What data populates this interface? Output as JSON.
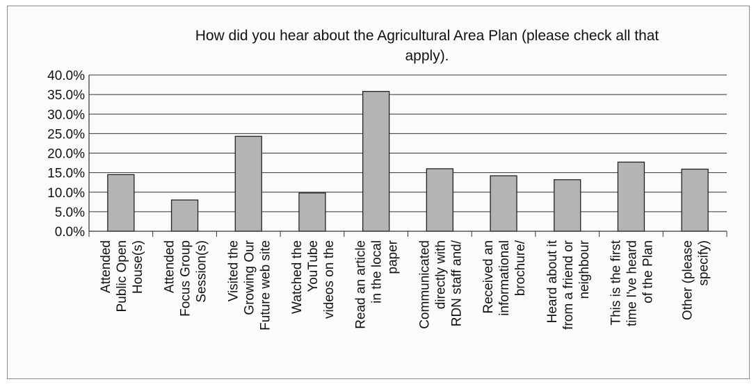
{
  "chart_data": {
    "type": "bar",
    "title_lines": [
      "How did you hear about the Agricultural Area Plan (please check all that",
      "apply)."
    ],
    "xlabel": "",
    "ylabel": "",
    "ylim": [
      0,
      40
    ],
    "y_tick_labels": [
      "40.0%",
      "35.0%",
      "30.0%",
      "25.0%",
      "20.0%",
      "15.0%",
      "10.0%",
      "5.0%",
      "0.0%"
    ],
    "y_tick_values": [
      40,
      35,
      30,
      25,
      20,
      15,
      10,
      5,
      0
    ],
    "grid": true,
    "legend": "none",
    "bar_color": "#b4b4b4",
    "categories": [
      "Attended Public Open House(s)",
      "Attended Focus Group Session(s)",
      "Visited the Growing Our Future web site",
      "Watched the YouTube videos on the",
      "Read an article in the local paper",
      "Communicated directly with RDN staff and/",
      "Received an informational brochure/",
      "Heard about it from a friend or neighbour",
      "This is the first time I've heard of the Plan",
      "Other (please specify)"
    ],
    "category_label_lines": [
      [
        "Attended",
        "Public Open",
        "House(s)"
      ],
      [
        "Attended",
        "Focus Group",
        "Session(s)"
      ],
      [
        "Visited the",
        "Growing Our",
        "Future web site"
      ],
      [
        "Watched the",
        "YouTube",
        "videos on the"
      ],
      [
        "Read an article",
        "in the local",
        "paper"
      ],
      [
        "Communicated",
        "directly with",
        "RDN staff and/"
      ],
      [
        "Received an",
        "informational",
        "brochure/"
      ],
      [
        "Heard about it",
        "from a friend or",
        "neighbour"
      ],
      [
        "This is the first",
        "time I've heard",
        "of the Plan"
      ],
      [
        "Other (please",
        "specify)"
      ]
    ],
    "values": [
      14.5,
      8.0,
      24.3,
      9.8,
      35.8,
      16.0,
      14.2,
      13.2,
      17.7,
      15.9
    ]
  }
}
